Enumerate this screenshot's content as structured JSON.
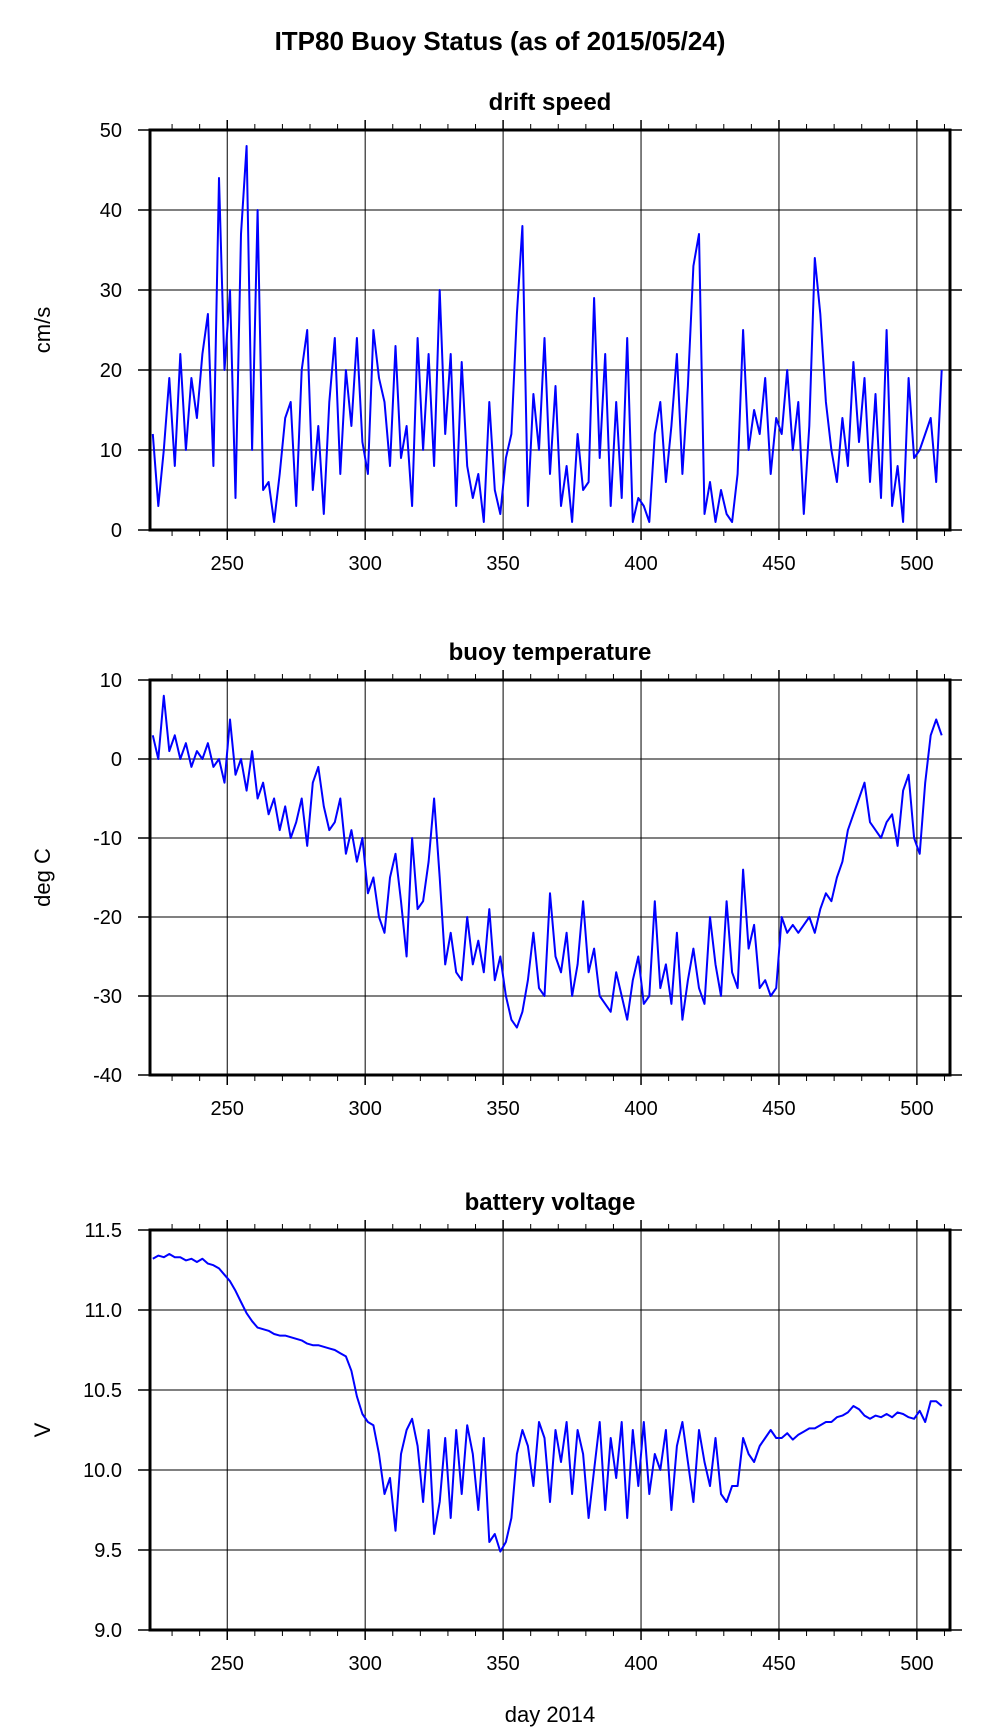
{
  "title": "ITP80 Buoy Status (as of 2015/05/24)",
  "colors": {
    "line": "#0000ff",
    "grid": "#000000",
    "frame": "#000000"
  },
  "chart_data": [
    {
      "type": "line",
      "title": "drift speed",
      "xlabel": "",
      "ylabel": "cm/s",
      "xlim": [
        222,
        512
      ],
      "ylim": [
        0,
        50
      ],
      "x_ticks": [
        "250",
        "300",
        "350",
        "400",
        "450",
        "500"
      ],
      "y_ticks": [
        "0",
        "10",
        "20",
        "30",
        "40",
        "50"
      ],
      "grid": true,
      "series": [
        {
          "x": [
            223,
            225,
            227,
            229,
            231,
            233,
            235,
            237,
            239,
            241,
            243,
            245,
            247,
            249,
            251,
            253,
            255,
            257,
            259,
            261,
            263,
            265,
            267,
            269,
            271,
            273,
            275,
            277,
            279,
            281,
            283,
            285,
            287,
            289,
            291,
            293,
            295,
            297,
            299,
            301,
            303,
            305,
            307,
            309,
            311,
            313,
            315,
            317,
            319,
            321,
            323,
            325,
            327,
            329,
            331,
            333,
            335,
            337,
            339,
            341,
            343,
            345,
            347,
            349,
            351,
            353,
            355,
            357,
            359,
            361,
            363,
            365,
            367,
            369,
            371,
            373,
            375,
            377,
            379,
            381,
            383,
            385,
            387,
            389,
            391,
            393,
            395,
            397,
            399,
            401,
            403,
            405,
            407,
            409,
            411,
            413,
            415,
            417,
            419,
            421,
            423,
            425,
            427,
            429,
            431,
            433,
            435,
            437,
            439,
            441,
            443,
            445,
            447,
            449,
            451,
            453,
            455,
            457,
            459,
            461,
            463,
            465,
            467,
            469,
            471,
            473,
            475,
            477,
            479,
            481,
            483,
            485,
            487,
            489,
            491,
            493,
            495,
            497,
            499,
            501,
            503,
            505,
            507,
            509
          ],
          "y": [
            12,
            3,
            10,
            19,
            8,
            22,
            10,
            19,
            14,
            22,
            27,
            8,
            44,
            20,
            30,
            4,
            37,
            48,
            10,
            40,
            5,
            6,
            1,
            7,
            14,
            16,
            3,
            20,
            25,
            5,
            13,
            2,
            16,
            24,
            7,
            20,
            13,
            24,
            11,
            7,
            25,
            19,
            16,
            8,
            23,
            9,
            13,
            3,
            24,
            10,
            22,
            8,
            30,
            12,
            22,
            3,
            21,
            8,
            4,
            7,
            1,
            16,
            5,
            2,
            9,
            12,
            27,
            38,
            3,
            17,
            10,
            24,
            7,
            18,
            3,
            8,
            1,
            12,
            5,
            6,
            29,
            9,
            22,
            3,
            16,
            4,
            24,
            1,
            4,
            3,
            1,
            12,
            16,
            6,
            13,
            22,
            7,
            18,
            33,
            37,
            2,
            6,
            1,
            5,
            2,
            1,
            7,
            25,
            10,
            15,
            12,
            19,
            7,
            14,
            12,
            20,
            10,
            16,
            2,
            13,
            34,
            27,
            16,
            10,
            6,
            14,
            8,
            21,
            11,
            19,
            6,
            17,
            4,
            25,
            3,
            8,
            1,
            19,
            9,
            10,
            12,
            14,
            6,
            20
          ]
        }
      ]
    },
    {
      "type": "line",
      "title": "buoy temperature",
      "xlabel": "",
      "ylabel": "deg C",
      "xlim": [
        222,
        512
      ],
      "ylim": [
        -40,
        10
      ],
      "x_ticks": [
        "250",
        "300",
        "350",
        "400",
        "450",
        "500"
      ],
      "y_ticks": [
        "-40",
        "-30",
        "-20",
        "-10",
        "0",
        "10"
      ],
      "grid": true,
      "series": [
        {
          "x": [
            223,
            225,
            227,
            229,
            231,
            233,
            235,
            237,
            239,
            241,
            243,
            245,
            247,
            249,
            251,
            253,
            255,
            257,
            259,
            261,
            263,
            265,
            267,
            269,
            271,
            273,
            275,
            277,
            279,
            281,
            283,
            285,
            287,
            289,
            291,
            293,
            295,
            297,
            299,
            301,
            303,
            305,
            307,
            309,
            311,
            313,
            315,
            317,
            319,
            321,
            323,
            325,
            327,
            329,
            331,
            333,
            335,
            337,
            339,
            341,
            343,
            345,
            347,
            349,
            351,
            353,
            355,
            357,
            359,
            361,
            363,
            365,
            367,
            369,
            371,
            373,
            375,
            377,
            379,
            381,
            383,
            385,
            387,
            389,
            391,
            393,
            395,
            397,
            399,
            401,
            403,
            405,
            407,
            409,
            411,
            413,
            415,
            417,
            419,
            421,
            423,
            425,
            427,
            429,
            431,
            433,
            435,
            437,
            439,
            441,
            443,
            445,
            447,
            449,
            451,
            453,
            455,
            457,
            459,
            461,
            463,
            465,
            467,
            469,
            471,
            473,
            475,
            477,
            479,
            481,
            483,
            485,
            487,
            489,
            491,
            493,
            495,
            497,
            499,
            501,
            503,
            505,
            507,
            509
          ],
          "y": [
            3,
            0,
            8,
            1,
            3,
            0,
            2,
            -1,
            1,
            0,
            2,
            -1,
            0,
            -3,
            5,
            -2,
            0,
            -4,
            1,
            -5,
            -3,
            -7,
            -5,
            -9,
            -6,
            -10,
            -8,
            -5,
            -11,
            -3,
            -1,
            -6,
            -9,
            -8,
            -5,
            -12,
            -9,
            -13,
            -10,
            -17,
            -15,
            -20,
            -22,
            -15,
            -12,
            -18,
            -25,
            -10,
            -19,
            -18,
            -13,
            -5,
            -15,
            -26,
            -22,
            -27,
            -28,
            -20,
            -26,
            -23,
            -27,
            -19,
            -28,
            -25,
            -30,
            -33,
            -34,
            -32,
            -28,
            -22,
            -29,
            -30,
            -17,
            -25,
            -27,
            -22,
            -30,
            -26,
            -18,
            -27,
            -24,
            -30,
            -31,
            -32,
            -27,
            -30,
            -33,
            -28,
            -25,
            -31,
            -30,
            -18,
            -29,
            -26,
            -31,
            -22,
            -33,
            -28,
            -24,
            -29,
            -31,
            -20,
            -26,
            -30,
            -18,
            -27,
            -29,
            -14,
            -24,
            -21,
            -29,
            -28,
            -30,
            -29,
            -20,
            -22,
            -21,
            -22,
            -21,
            -20,
            -22,
            -19,
            -17,
            -18,
            -15,
            -13,
            -9,
            -7,
            -5,
            -3,
            -8,
            -9,
            -10,
            -8,
            -7,
            -11,
            -4,
            -2,
            -10,
            -12,
            -3,
            3,
            5,
            3
          ]
        }
      ]
    },
    {
      "type": "line",
      "title": "battery voltage",
      "xlabel": "day 2014",
      "ylabel": "V",
      "xlim": [
        222,
        512
      ],
      "ylim": [
        9.0,
        11.5
      ],
      "x_ticks": [
        "250",
        "300",
        "350",
        "400",
        "450",
        "500"
      ],
      "y_ticks": [
        "9.0",
        "9.5",
        "10.0",
        "10.5",
        "11.0",
        "11.5"
      ],
      "grid": true,
      "series": [
        {
          "x": [
            223,
            225,
            227,
            229,
            231,
            233,
            235,
            237,
            239,
            241,
            243,
            245,
            247,
            249,
            251,
            253,
            255,
            257,
            259,
            261,
            263,
            265,
            267,
            269,
            271,
            273,
            275,
            277,
            279,
            281,
            283,
            285,
            287,
            289,
            291,
            293,
            295,
            297,
            299,
            301,
            303,
            305,
            307,
            309,
            311,
            313,
            315,
            317,
            319,
            321,
            323,
            325,
            327,
            329,
            331,
            333,
            335,
            337,
            339,
            341,
            343,
            345,
            347,
            349,
            351,
            353,
            355,
            357,
            359,
            361,
            363,
            365,
            367,
            369,
            371,
            373,
            375,
            377,
            379,
            381,
            383,
            385,
            387,
            389,
            391,
            393,
            395,
            397,
            399,
            401,
            403,
            405,
            407,
            409,
            411,
            413,
            415,
            417,
            419,
            421,
            423,
            425,
            427,
            429,
            431,
            433,
            435,
            437,
            439,
            441,
            443,
            445,
            447,
            449,
            451,
            453,
            455,
            457,
            459,
            461,
            463,
            465,
            467,
            469,
            471,
            473,
            475,
            477,
            479,
            481,
            483,
            485,
            487,
            489,
            491,
            493,
            495,
            497,
            499,
            501,
            503,
            505,
            507,
            509
          ],
          "y": [
            11.32,
            11.34,
            11.33,
            11.35,
            11.33,
            11.33,
            11.31,
            11.32,
            11.3,
            11.32,
            11.29,
            11.28,
            11.26,
            11.22,
            11.18,
            11.12,
            11.05,
            10.98,
            10.93,
            10.89,
            10.88,
            10.87,
            10.85,
            10.84,
            10.84,
            10.83,
            10.82,
            10.81,
            10.79,
            10.78,
            10.78,
            10.77,
            10.76,
            10.75,
            10.73,
            10.71,
            10.62,
            10.46,
            10.35,
            10.3,
            10.28,
            10.1,
            9.85,
            9.95,
            9.62,
            10.1,
            10.25,
            10.32,
            10.15,
            9.8,
            10.25,
            9.6,
            9.8,
            10.2,
            9.7,
            10.25,
            9.85,
            10.28,
            10.1,
            9.75,
            10.2,
            9.55,
            9.6,
            9.49,
            9.55,
            9.7,
            10.1,
            10.25,
            10.15,
            9.9,
            10.3,
            10.2,
            9.8,
            10.25,
            10.05,
            10.3,
            9.85,
            10.25,
            10.1,
            9.7,
            10.0,
            10.3,
            9.75,
            10.2,
            9.95,
            10.3,
            9.7,
            10.25,
            9.9,
            10.3,
            9.85,
            10.1,
            10.0,
            10.25,
            9.75,
            10.15,
            10.3,
            10.05,
            9.8,
            10.25,
            10.05,
            9.9,
            10.2,
            9.85,
            9.8,
            9.9,
            9.9,
            10.2,
            10.1,
            10.05,
            10.15,
            10.2,
            10.25,
            10.2,
            10.2,
            10.23,
            10.19,
            10.22,
            10.24,
            10.26,
            10.26,
            10.28,
            10.3,
            10.3,
            10.33,
            10.34,
            10.36,
            10.4,
            10.38,
            10.34,
            10.32,
            10.34,
            10.33,
            10.35,
            10.33,
            10.36,
            10.35,
            10.33,
            10.32,
            10.37,
            10.3,
            10.43,
            10.43,
            10.4
          ]
        }
      ]
    }
  ]
}
